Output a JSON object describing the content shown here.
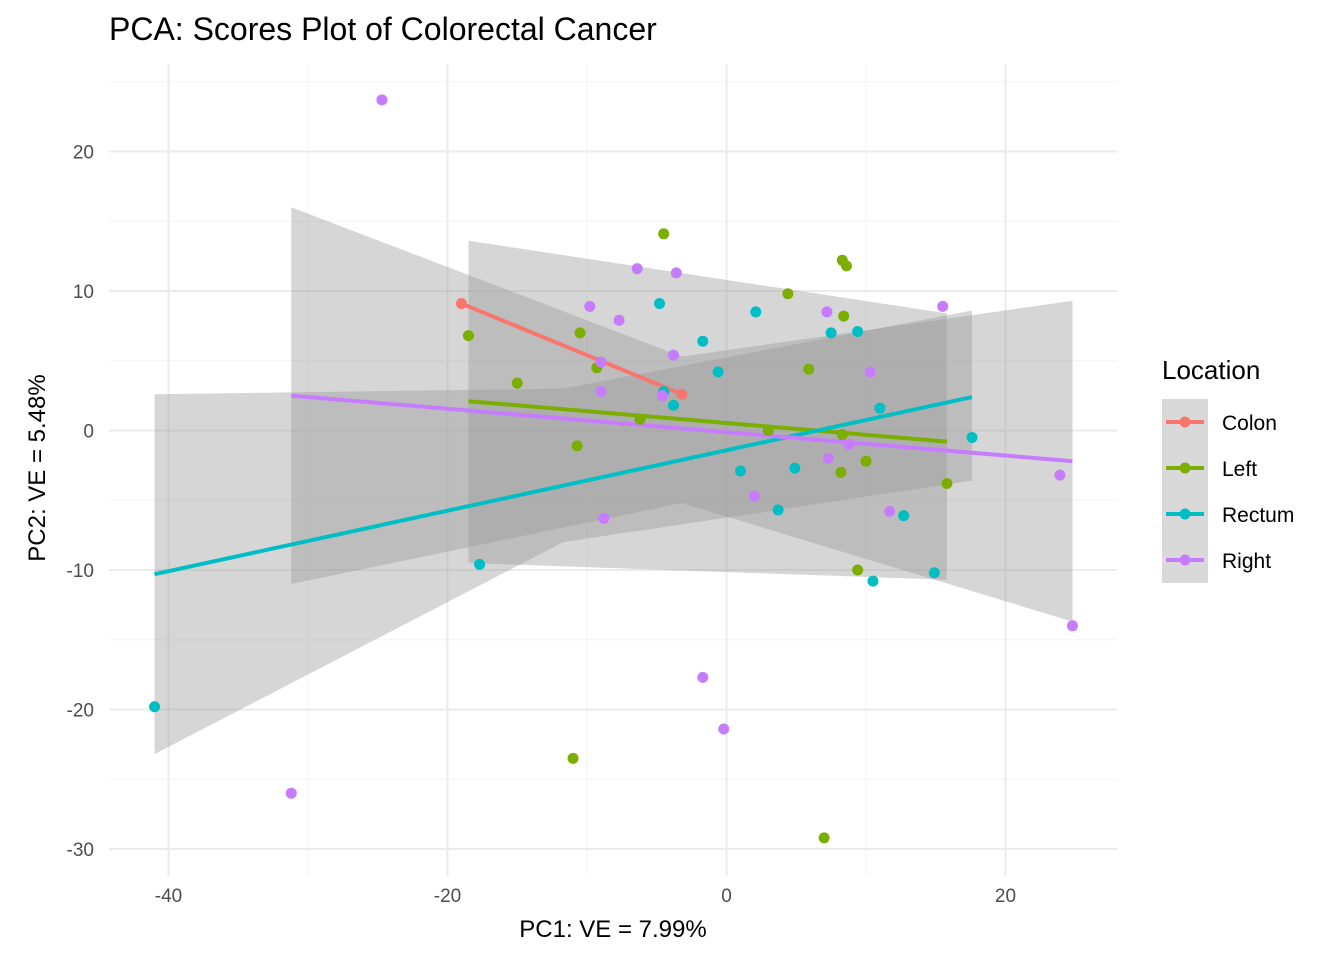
{
  "chart_data": {
    "type": "scatter",
    "title": "PCA: Scores Plot of Colorectal Cancer",
    "xlabel": "PC1: VE = 7.99%",
    "ylabel": "PC2: VE = 5.48%",
    "xlim": [
      -45,
      28
    ],
    "ylim": [
      -32.5,
      26.5
    ],
    "x_ticks": [
      -40,
      -20,
      0,
      20
    ],
    "y_ticks": [
      -30,
      -20,
      -10,
      0,
      10,
      20
    ],
    "x_tick_labels": [
      "-40",
      "-20",
      "0",
      "20"
    ],
    "y_tick_labels": [
      "-30",
      "-20",
      "-10",
      "0",
      "10",
      "20"
    ],
    "grid": true,
    "legend": {
      "title": "Location",
      "position": "right"
    },
    "series": [
      {
        "name": "Colon",
        "color": "#F8766D",
        "points": [
          [
            -19.0,
            9.1
          ],
          [
            -3.2,
            2.6
          ]
        ],
        "fit": {
          "x": [
            -19.0,
            -3.2
          ],
          "y": [
            9.1,
            2.6
          ]
        },
        "band": {
          "x": [
            -19.0,
            -3.2
          ],
          "lower": [
            9.1,
            2.6
          ],
          "upper": [
            9.1,
            2.6
          ]
        }
      },
      {
        "name": "Left",
        "color": "#7CAE00",
        "points": [
          [
            -18.5,
            6.8
          ],
          [
            -4.5,
            14.1
          ],
          [
            8.3,
            12.2
          ],
          [
            8.6,
            11.8
          ],
          [
            4.4,
            9.8
          ],
          [
            8.4,
            8.2
          ],
          [
            -10.5,
            7.0
          ],
          [
            -9.3,
            4.5
          ],
          [
            -15.0,
            3.4
          ],
          [
            5.9,
            4.4
          ],
          [
            -6.2,
            0.8
          ],
          [
            3.0,
            0.0
          ],
          [
            8.3,
            -0.3
          ],
          [
            -10.7,
            -1.1
          ],
          [
            10.0,
            -2.2
          ],
          [
            8.2,
            -3.0
          ],
          [
            15.8,
            -3.8
          ],
          [
            9.4,
            -10.0
          ],
          [
            -11.0,
            -23.5
          ],
          [
            7.0,
            -29.2
          ]
        ],
        "fit": {
          "x": [
            -18.5,
            15.8
          ],
          "y": [
            2.1,
            -0.8
          ]
        },
        "band": {
          "x": [
            -18.5,
            15.8
          ],
          "lower": [
            -9.5,
            -10.7
          ],
          "upper": [
            13.6,
            8.4
          ]
        }
      },
      {
        "name": "Rectum",
        "color": "#00BFC4",
        "points": [
          [
            -41.0,
            -19.8
          ],
          [
            -17.7,
            -9.6
          ],
          [
            -4.8,
            9.1
          ],
          [
            -1.7,
            6.4
          ],
          [
            2.1,
            8.5
          ],
          [
            7.5,
            7.0
          ],
          [
            9.4,
            7.1
          ],
          [
            -4.5,
            2.8
          ],
          [
            -3.8,
            1.8
          ],
          [
            -0.6,
            4.2
          ],
          [
            11.0,
            1.6
          ],
          [
            17.6,
            -0.5
          ],
          [
            1.0,
            -2.9
          ],
          [
            4.9,
            -2.7
          ],
          [
            3.7,
            -5.7
          ],
          [
            12.7,
            -6.1
          ],
          [
            14.9,
            -10.2
          ],
          [
            10.5,
            -10.8
          ]
        ],
        "fit": {
          "x": [
            -41.0,
            17.6
          ],
          "y": [
            -10.3,
            2.4
          ]
        },
        "band": {
          "x": [
            -41.0,
            -11.7,
            17.6
          ],
          "lower": [
            -23.2,
            -8.0,
            -3.6
          ],
          "upper": [
            2.6,
            3.0,
            8.6
          ]
        }
      },
      {
        "name": "Right",
        "color": "#C77CFF",
        "points": [
          [
            -24.7,
            23.7
          ],
          [
            -6.4,
            11.6
          ],
          [
            -3.6,
            11.3
          ],
          [
            -9.8,
            8.9
          ],
          [
            -7.7,
            7.9
          ],
          [
            7.2,
            8.5
          ],
          [
            15.5,
            8.9
          ],
          [
            -3.8,
            5.4
          ],
          [
            -9.0,
            4.9
          ],
          [
            10.3,
            4.2
          ],
          [
            -9.0,
            2.8
          ],
          [
            -4.6,
            2.5
          ],
          [
            8.8,
            -1.0
          ],
          [
            7.3,
            -2.0
          ],
          [
            2.0,
            -4.7
          ],
          [
            11.7,
            -5.8
          ],
          [
            -8.8,
            -6.3
          ],
          [
            23.9,
            -3.2
          ],
          [
            24.8,
            -14.0
          ],
          [
            -1.7,
            -17.7
          ],
          [
            -0.2,
            -21.4
          ],
          [
            -31.2,
            -26.0
          ]
        ],
        "fit": {
          "x": [
            -31.2,
            24.8
          ],
          "y": [
            2.5,
            -2.2
          ]
        },
        "band": {
          "x": [
            -31.2,
            -3.2,
            24.8
          ],
          "lower": [
            -11.0,
            -5.2,
            -13.7
          ],
          "upper": [
            16.0,
            5.3,
            9.3
          ]
        }
      }
    ]
  }
}
